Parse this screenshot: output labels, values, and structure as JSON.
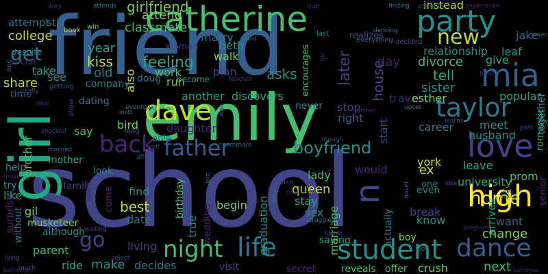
{
  "palette": {
    "background": "#000000",
    "dark_purple": "#482374",
    "indigo": "#414487",
    "blue_slate": "#355F8D",
    "steel_teal": "#2A788E",
    "teal": "#21918C",
    "green_teal": "#22A884",
    "green": "#44BF70",
    "lime": "#7AD151",
    "yellow_green": "#BDDF26",
    "yellow": "#FDE725"
  },
  "words": [
    {
      "text": "school",
      "color": "#414487"
    },
    {
      "text": "friend",
      "color": "#355F8D"
    },
    {
      "text": "emily",
      "color": "#44BF70"
    },
    {
      "text": "girl",
      "color": "#22A884"
    },
    {
      "text": "catherine",
      "color": "#44BF70"
    },
    {
      "text": "dave",
      "color": "#BDDF26"
    },
    {
      "text": "party",
      "color": "#21918C"
    },
    {
      "text": "mia",
      "color": "#355F8D"
    },
    {
      "text": "taylor",
      "color": "#2A788E"
    },
    {
      "text": "love",
      "color": "#414487"
    },
    {
      "text": "high",
      "color": "#FDE725"
    },
    {
      "text": "father",
      "color": "#355F8D"
    },
    {
      "text": "student",
      "color": "#21918C"
    },
    {
      "text": "life",
      "color": "#2A788E"
    },
    {
      "text": "night",
      "color": "#44BF70"
    },
    {
      "text": "dance",
      "color": "#355F8D"
    },
    {
      "text": "new",
      "color": "#BDDF26"
    },
    {
      "text": "get",
      "color": "#2A788E"
    },
    {
      "text": "back",
      "color": "#482374"
    },
    {
      "text": "go",
      "color": "#414487"
    },
    {
      "text": "n",
      "color": "#414487"
    },
    {
      "text": "boyfriend",
      "color": "#21918C"
    },
    {
      "text": "girlfriend",
      "color": "#7AD151"
    },
    {
      "text": "college",
      "color": "#BDDF26"
    },
    {
      "text": "attempt",
      "color": "#2A788E"
    },
    {
      "text": "still",
      "color": "#2A788E"
    },
    {
      "text": "classmate",
      "color": "#44BF70"
    },
    {
      "text": "attend",
      "color": "#7AD151"
    },
    {
      "text": "also",
      "color": "#BDDF26"
    },
    {
      "text": "marry",
      "color": "#2A788E"
    },
    {
      "text": "beth",
      "color": "#21918C"
    },
    {
      "text": "walk",
      "color": "#7AD151"
    },
    {
      "text": "relationship",
      "color": "#21918C"
    },
    {
      "text": "year",
      "color": "#22A884"
    },
    {
      "text": "kiss",
      "color": "#BDDF26"
    },
    {
      "text": "woman",
      "color": "#414487"
    },
    {
      "text": "feeling",
      "color": "#22A884"
    },
    {
      "text": "work",
      "color": "#44BF70"
    },
    {
      "text": "plan",
      "color": "#414487"
    },
    {
      "text": "asks",
      "color": "#21918C"
    },
    {
      "text": "divorce",
      "color": "#44BF70"
    },
    {
      "text": "give",
      "color": "#22A884"
    },
    {
      "text": "day",
      "color": "#482374"
    },
    {
      "text": "leaf",
      "color": "#21918C"
    },
    {
      "text": "jake",
      "color": "#355F8D"
    },
    {
      "text": "home",
      "color": "#FDE725"
    },
    {
      "text": "take",
      "color": "#22A884"
    },
    {
      "text": "see",
      "color": "#21918C"
    },
    {
      "text": "old",
      "color": "#2A788E"
    },
    {
      "text": "share",
      "color": "#BDDF26"
    },
    {
      "text": "company",
      "color": "#2A788E"
    },
    {
      "text": "run",
      "color": "#7AD151"
    },
    {
      "text": "doug",
      "color": "#2A788E"
    },
    {
      "text": "later",
      "color": "#414487"
    },
    {
      "text": "house",
      "color": "#414487"
    },
    {
      "text": "tell",
      "color": "#22A884"
    },
    {
      "text": "sister",
      "color": "#21918C"
    },
    {
      "text": "popular",
      "color": "#22A884"
    },
    {
      "text": "time",
      "color": "#355F8D"
    },
    {
      "text": "dating",
      "color": "#2A788E"
    },
    {
      "text": "another",
      "color": "#22A884"
    },
    {
      "text": "discovers",
      "color": "#22A884"
    },
    {
      "text": "never",
      "color": "#2A788E"
    },
    {
      "text": "stop",
      "color": "#414487"
    },
    {
      "text": "right",
      "color": "#355F8D"
    },
    {
      "text": "travel",
      "color": "#482374"
    },
    {
      "text": "esther",
      "color": "#7AD151"
    },
    {
      "text": "bird",
      "color": "#7AD151"
    },
    {
      "text": "daughter",
      "color": "#482374"
    },
    {
      "text": "career",
      "color": "#2A788E"
    },
    {
      "text": "meet",
      "color": "#21918C"
    },
    {
      "text": "husband",
      "color": "#21918C"
    },
    {
      "text": "brother",
      "color": "#44BF70"
    },
    {
      "text": "say",
      "color": "#44BF70"
    },
    {
      "text": "able",
      "color": "#2A788E"
    },
    {
      "text": "would",
      "color": "#482374"
    },
    {
      "text": "ex",
      "color": "#BDDF26"
    },
    {
      "text": "york",
      "color": "#BDDF26"
    },
    {
      "text": "prom",
      "color": "#44BF70"
    },
    {
      "text": "leave",
      "color": "#22A884"
    },
    {
      "text": "university",
      "color": "#22A884"
    },
    {
      "text": "mother",
      "color": "#22A884"
    },
    {
      "text": "help",
      "color": "#21918C"
    },
    {
      "text": "look",
      "color": "#2A788E"
    },
    {
      "text": "try",
      "color": "#21918C"
    },
    {
      "text": "family",
      "color": "#414487"
    },
    {
      "text": "lady",
      "color": "#44BF70"
    },
    {
      "text": "even",
      "color": "#21918C"
    },
    {
      "text": "one",
      "color": "#2A788E"
    },
    {
      "text": "like",
      "color": "#22A884"
    },
    {
      "text": "find",
      "color": "#21918C"
    },
    {
      "text": "queen",
      "color": "#BDDF26"
    },
    {
      "text": "stay",
      "color": "#22A884"
    },
    {
      "text": "best",
      "color": "#BDDF26"
    },
    {
      "text": "gil",
      "color": "#7AD151"
    },
    {
      "text": "date",
      "color": "#2A788E"
    },
    {
      "text": "begin",
      "color": "#7AD151"
    },
    {
      "text": "sex",
      "color": "#21918C"
    },
    {
      "text": "break",
      "color": "#414487"
    },
    {
      "text": "know",
      "color": "#21918C"
    },
    {
      "text": "want",
      "color": "#355F8D"
    },
    {
      "text": "musketeer",
      "color": "#7AD151"
    },
    {
      "text": "parent",
      "color": "#44BF70"
    },
    {
      "text": "living",
      "color": "#414487"
    },
    {
      "text": "saying",
      "color": "#22A884"
    },
    {
      "text": "boy",
      "color": "#7AD151"
    },
    {
      "text": "change",
      "color": "#7AD151"
    },
    {
      "text": "ride",
      "color": "#22A884"
    },
    {
      "text": "make",
      "color": "#21918C"
    },
    {
      "text": "decides",
      "color": "#2A788E"
    },
    {
      "text": "visit",
      "color": "#414487"
    },
    {
      "text": "secret",
      "color": "#482374"
    },
    {
      "text": "reveals",
      "color": "#44BF70"
    },
    {
      "text": "offer",
      "color": "#44BF70"
    },
    {
      "text": "crush",
      "color": "#7AD151"
    },
    {
      "text": "next",
      "color": "#44BF70"
    },
    {
      "text": "instead",
      "color": "#BDDF26"
    },
    {
      "text": "true",
      "color": "#21918C"
    },
    {
      "text": "wedding",
      "color": "#482374"
    },
    {
      "text": "birthday",
      "color": "#44BF70"
    },
    {
      "text": "graduation",
      "color": "#21918C"
    },
    {
      "text": "marriage",
      "color": "#44BF70"
    },
    {
      "text": "actually",
      "color": "#2A788E"
    },
    {
      "text": "start",
      "color": "#414487"
    },
    {
      "text": "encourages",
      "color": "#44BF70"
    },
    {
      "text": "come",
      "color": "#482374"
    },
    {
      "text": "arrives",
      "color": "#22A884"
    },
    {
      "text": "without",
      "color": "#2A788E"
    },
    {
      "text": "surprise",
      "color": "#482374"
    },
    {
      "text": "although",
      "color": "#21918C"
    },
    {
      "text": "senior",
      "color": "#482374"
    },
    {
      "text": "romantic",
      "color": "#22A884"
    },
    {
      "text": "together",
      "color": "#21918C"
    },
    {
      "text": "despite",
      "color": "#2A788E"
    },
    {
      "text": "social",
      "color": "#482374"
    },
    {
      "text": "become",
      "color": "#21918C"
    },
    {
      "text": "realizes",
      "color": "#414487"
    },
    {
      "text": "win",
      "color": "#7AD151"
    },
    {
      "text": "book",
      "color": "#BDDF26"
    },
    {
      "text": "way",
      "color": "#482374"
    },
    {
      "text": "attends",
      "color": "#2A788E"
    },
    {
      "text": "finding",
      "color": "#2A788E"
    },
    {
      "text": "experience",
      "color": "#482374"
    },
    {
      "text": "accepts",
      "color": "#414487"
    },
    {
      "text": "due",
      "color": "#482374"
    },
    {
      "text": "dancing",
      "color": "#2A788E"
    },
    {
      "text": "everything",
      "color": "#355F8D"
    },
    {
      "text": "last",
      "color": "#21918C"
    },
    {
      "text": "decided",
      "color": "#414487"
    },
    {
      "text": "isaac",
      "color": "#355F8D"
    },
    {
      "text": "fianc",
      "color": "#482374"
    },
    {
      "text": "end",
      "color": "#414487"
    },
    {
      "text": "getting",
      "color": "#414487"
    },
    {
      "text": "really",
      "color": "#414487"
    },
    {
      "text": "final",
      "color": "#482374"
    },
    {
      "text": "eventually",
      "color": "#2A788E"
    },
    {
      "text": "quits",
      "color": "#2A788E"
    },
    {
      "text": "show",
      "color": "#414487"
    },
    {
      "text": "shocked",
      "color": "#414487"
    },
    {
      "text": "married",
      "color": "#355F8D"
    },
    {
      "text": "must",
      "color": "#482374"
    },
    {
      "text": "long",
      "color": "#355F8D"
    },
    {
      "text": "self",
      "color": "#414487"
    },
    {
      "text": "roommate",
      "color": "#355F8D"
    },
    {
      "text": "wait",
      "color": "#414487"
    },
    {
      "text": "teacher",
      "color": "#414487"
    },
    {
      "text": "partner",
      "color": "#482374"
    },
    {
      "text": "though",
      "color": "#414487"
    },
    {
      "text": "upset",
      "color": "#2A788E"
    },
    {
      "text": "learns",
      "color": "#355F8D"
    },
    {
      "text": "past",
      "color": "#414487"
    },
    {
      "text": "affair",
      "color": "#414487"
    },
    {
      "text": "join",
      "color": "#2A788E"
    },
    {
      "text": "ditch",
      "color": "#414487"
    },
    {
      "text": "challenge",
      "color": "#482374"
    },
    {
      "text": "return",
      "color": "#2A788E"
    },
    {
      "text": "idea",
      "color": "#414487"
    },
    {
      "text": "discus",
      "color": "#2A788E"
    },
    {
      "text": "well",
      "color": "#414487"
    },
    {
      "text": "novel",
      "color": "#355F8D"
    },
    {
      "text": "pregnant",
      "color": "#482374"
    },
    {
      "text": "beauty",
      "color": "#482374"
    },
    {
      "text": "waiting",
      "color": "#414487"
    },
    {
      "text": "struggle",
      "color": "#2A788E"
    },
    {
      "text": "former",
      "color": "#414487"
    },
    {
      "text": "set",
      "color": "#2A788E"
    },
    {
      "text": "reject",
      "color": "#414487"
    },
    {
      "text": "lying",
      "color": "#414487"
    },
    {
      "text": "behavior",
      "color": "#482374"
    },
    {
      "text": "much",
      "color": "#414487"
    },
    {
      "text": "becomes",
      "color": "#482374"
    },
    {
      "text": "bond",
      "color": "#2A788E"
    },
    {
      "text": "trip",
      "color": "#482374"
    },
    {
      "text": "reconciles",
      "color": "#22A884"
    },
    {
      "text": "along",
      "color": "#482374"
    },
    {
      "text": "outside",
      "color": "#482374"
    },
    {
      "text": "move",
      "color": "#482374"
    }
  ]
}
